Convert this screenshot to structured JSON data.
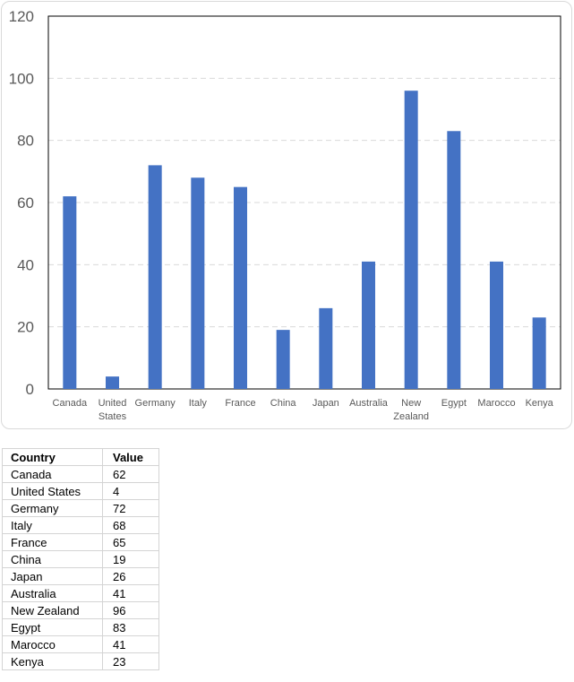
{
  "chart_data": {
    "type": "bar",
    "categories": [
      "Canada",
      "United States",
      "Germany",
      "Italy",
      "France",
      "China",
      "Japan",
      "Australia",
      "New Zealand",
      "Egypt",
      "Marocco",
      "Kenya"
    ],
    "values": [
      62,
      4,
      72,
      68,
      65,
      19,
      26,
      41,
      96,
      83,
      41,
      23
    ],
    "ylim": [
      0,
      120
    ],
    "yticks": [
      0,
      20,
      40,
      60,
      80,
      100,
      120
    ],
    "grid": true,
    "bar_color": "#4472c4",
    "gridline_color": "#d9d9d9"
  },
  "table": {
    "headers": [
      "Country",
      "Value"
    ],
    "rows": [
      [
        "Canada",
        "62"
      ],
      [
        "United States",
        "4"
      ],
      [
        "Germany",
        "72"
      ],
      [
        "Italy",
        "68"
      ],
      [
        "France",
        "65"
      ],
      [
        "China",
        "19"
      ],
      [
        "Japan",
        "26"
      ],
      [
        "Australia",
        "41"
      ],
      [
        "New Zealand",
        "96"
      ],
      [
        "Egypt",
        "83"
      ],
      [
        "Marocco",
        "41"
      ],
      [
        "Kenya",
        "23"
      ]
    ]
  }
}
